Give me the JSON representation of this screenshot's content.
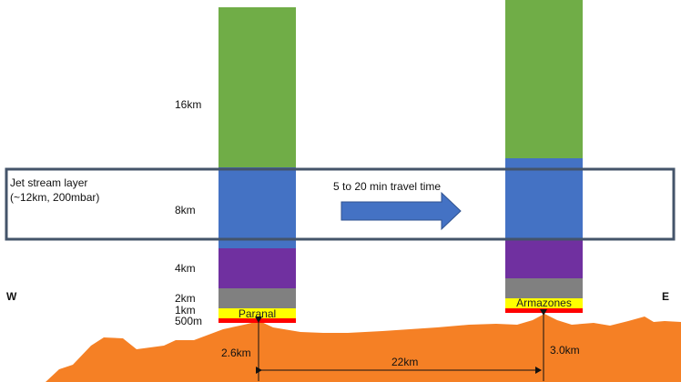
{
  "colors": {
    "ground": "#f58025",
    "green_layer": "#70ad47",
    "blue_layer": "#4472c4",
    "purple_layer": "#7030a0",
    "gray_layer": "#808080",
    "yellow_layer": "#ffff00",
    "red_layer": "#ff0000",
    "jet_box_border": "#44546a",
    "arrow": "#4472c4"
  },
  "directions": {
    "west": "W",
    "east": "E"
  },
  "jet_stream": {
    "line1": "Jet stream layer",
    "line2": "(~12km, 200mbar)"
  },
  "travel": {
    "label": "5 to 20 min travel time"
  },
  "layers": {
    "l16": "16km",
    "l8": "8km",
    "l4": "4km",
    "l2": "2km",
    "l1": "1km",
    "l500": "500m"
  },
  "sites": {
    "paranal": "Paranal",
    "armazones": "Armazones"
  },
  "measurements": {
    "paranal_height": "2.6km",
    "armazones_height": "3.0km",
    "distance": "22km"
  }
}
